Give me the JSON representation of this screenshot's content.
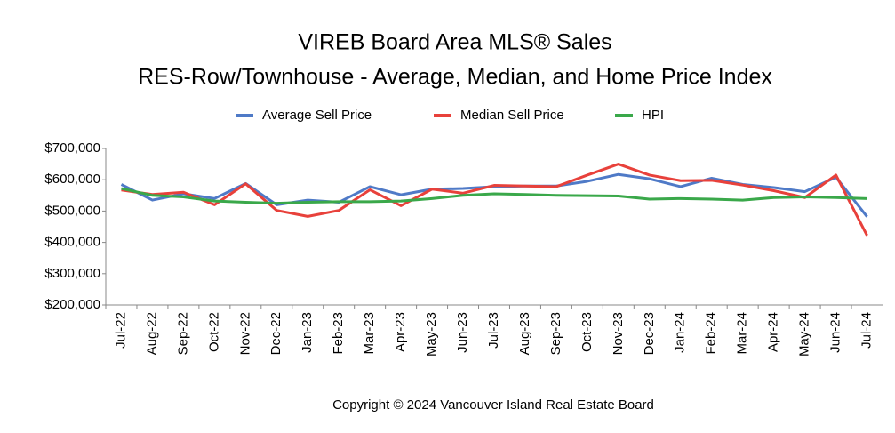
{
  "chart_data": {
    "type": "line",
    "title": [
      "VIREB Board Area MLS® Sales",
      "RES-Row/Townhouse - Average, Median, and Home Price Index"
    ],
    "categories": [
      "Jul-22",
      "Aug-22",
      "Sep-22",
      "Oct-22",
      "Nov-22",
      "Dec-22",
      "Jan-23",
      "Feb-23",
      "Mar-23",
      "Apr-23",
      "May-23",
      "Jun-23",
      "Jul-23",
      "Aug-23",
      "Sep-23",
      "Oct-23",
      "Nov-23",
      "Dec-23",
      "Jan-24",
      "Feb-24",
      "Mar-24",
      "Apr-24",
      "May-24",
      "Jun-24",
      "Jul-24"
    ],
    "series": [
      {
        "name": "Average Sell Price",
        "color": "#4f7ac7",
        "values": [
          585000,
          535000,
          555000,
          540000,
          588000,
          520000,
          535000,
          528000,
          578000,
          552000,
          570000,
          572000,
          578000,
          580000,
          580000,
          595000,
          617000,
          603000,
          578000,
          605000,
          585000,
          575000,
          562000,
          608000,
          482000
        ]
      },
      {
        "name": "Median Sell Price",
        "color": "#e8413b",
        "values": [
          567000,
          553000,
          560000,
          520000,
          587000,
          502000,
          483000,
          502000,
          568000,
          517000,
          570000,
          557000,
          582000,
          580000,
          578000,
          615000,
          650000,
          615000,
          597000,
          598000,
          583000,
          565000,
          543000,
          615000,
          422000
        ]
      },
      {
        "name": "HPI",
        "color": "#3aa84a",
        "values": [
          572000,
          550000,
          545000,
          532000,
          528000,
          525000,
          528000,
          530000,
          530000,
          532000,
          540000,
          550000,
          555000,
          553000,
          550000,
          549000,
          548000,
          538000,
          540000,
          538000,
          535000,
          543000,
          545000,
          543000,
          540000
        ]
      }
    ],
    "ylim": [
      200000,
      700000
    ],
    "yticks": [
      {
        "value": 200000,
        "label": "$200,000"
      },
      {
        "value": 300000,
        "label": "$300,000"
      },
      {
        "value": 400000,
        "label": "$400,000"
      },
      {
        "value": 500000,
        "label": "$500,000"
      },
      {
        "value": 600000,
        "label": "$600,000"
      },
      {
        "value": 700000,
        "label": "$700,000"
      }
    ],
    "legend": "top",
    "source": "Copyright © 2024 Vancouver Island Real Estate Board"
  }
}
